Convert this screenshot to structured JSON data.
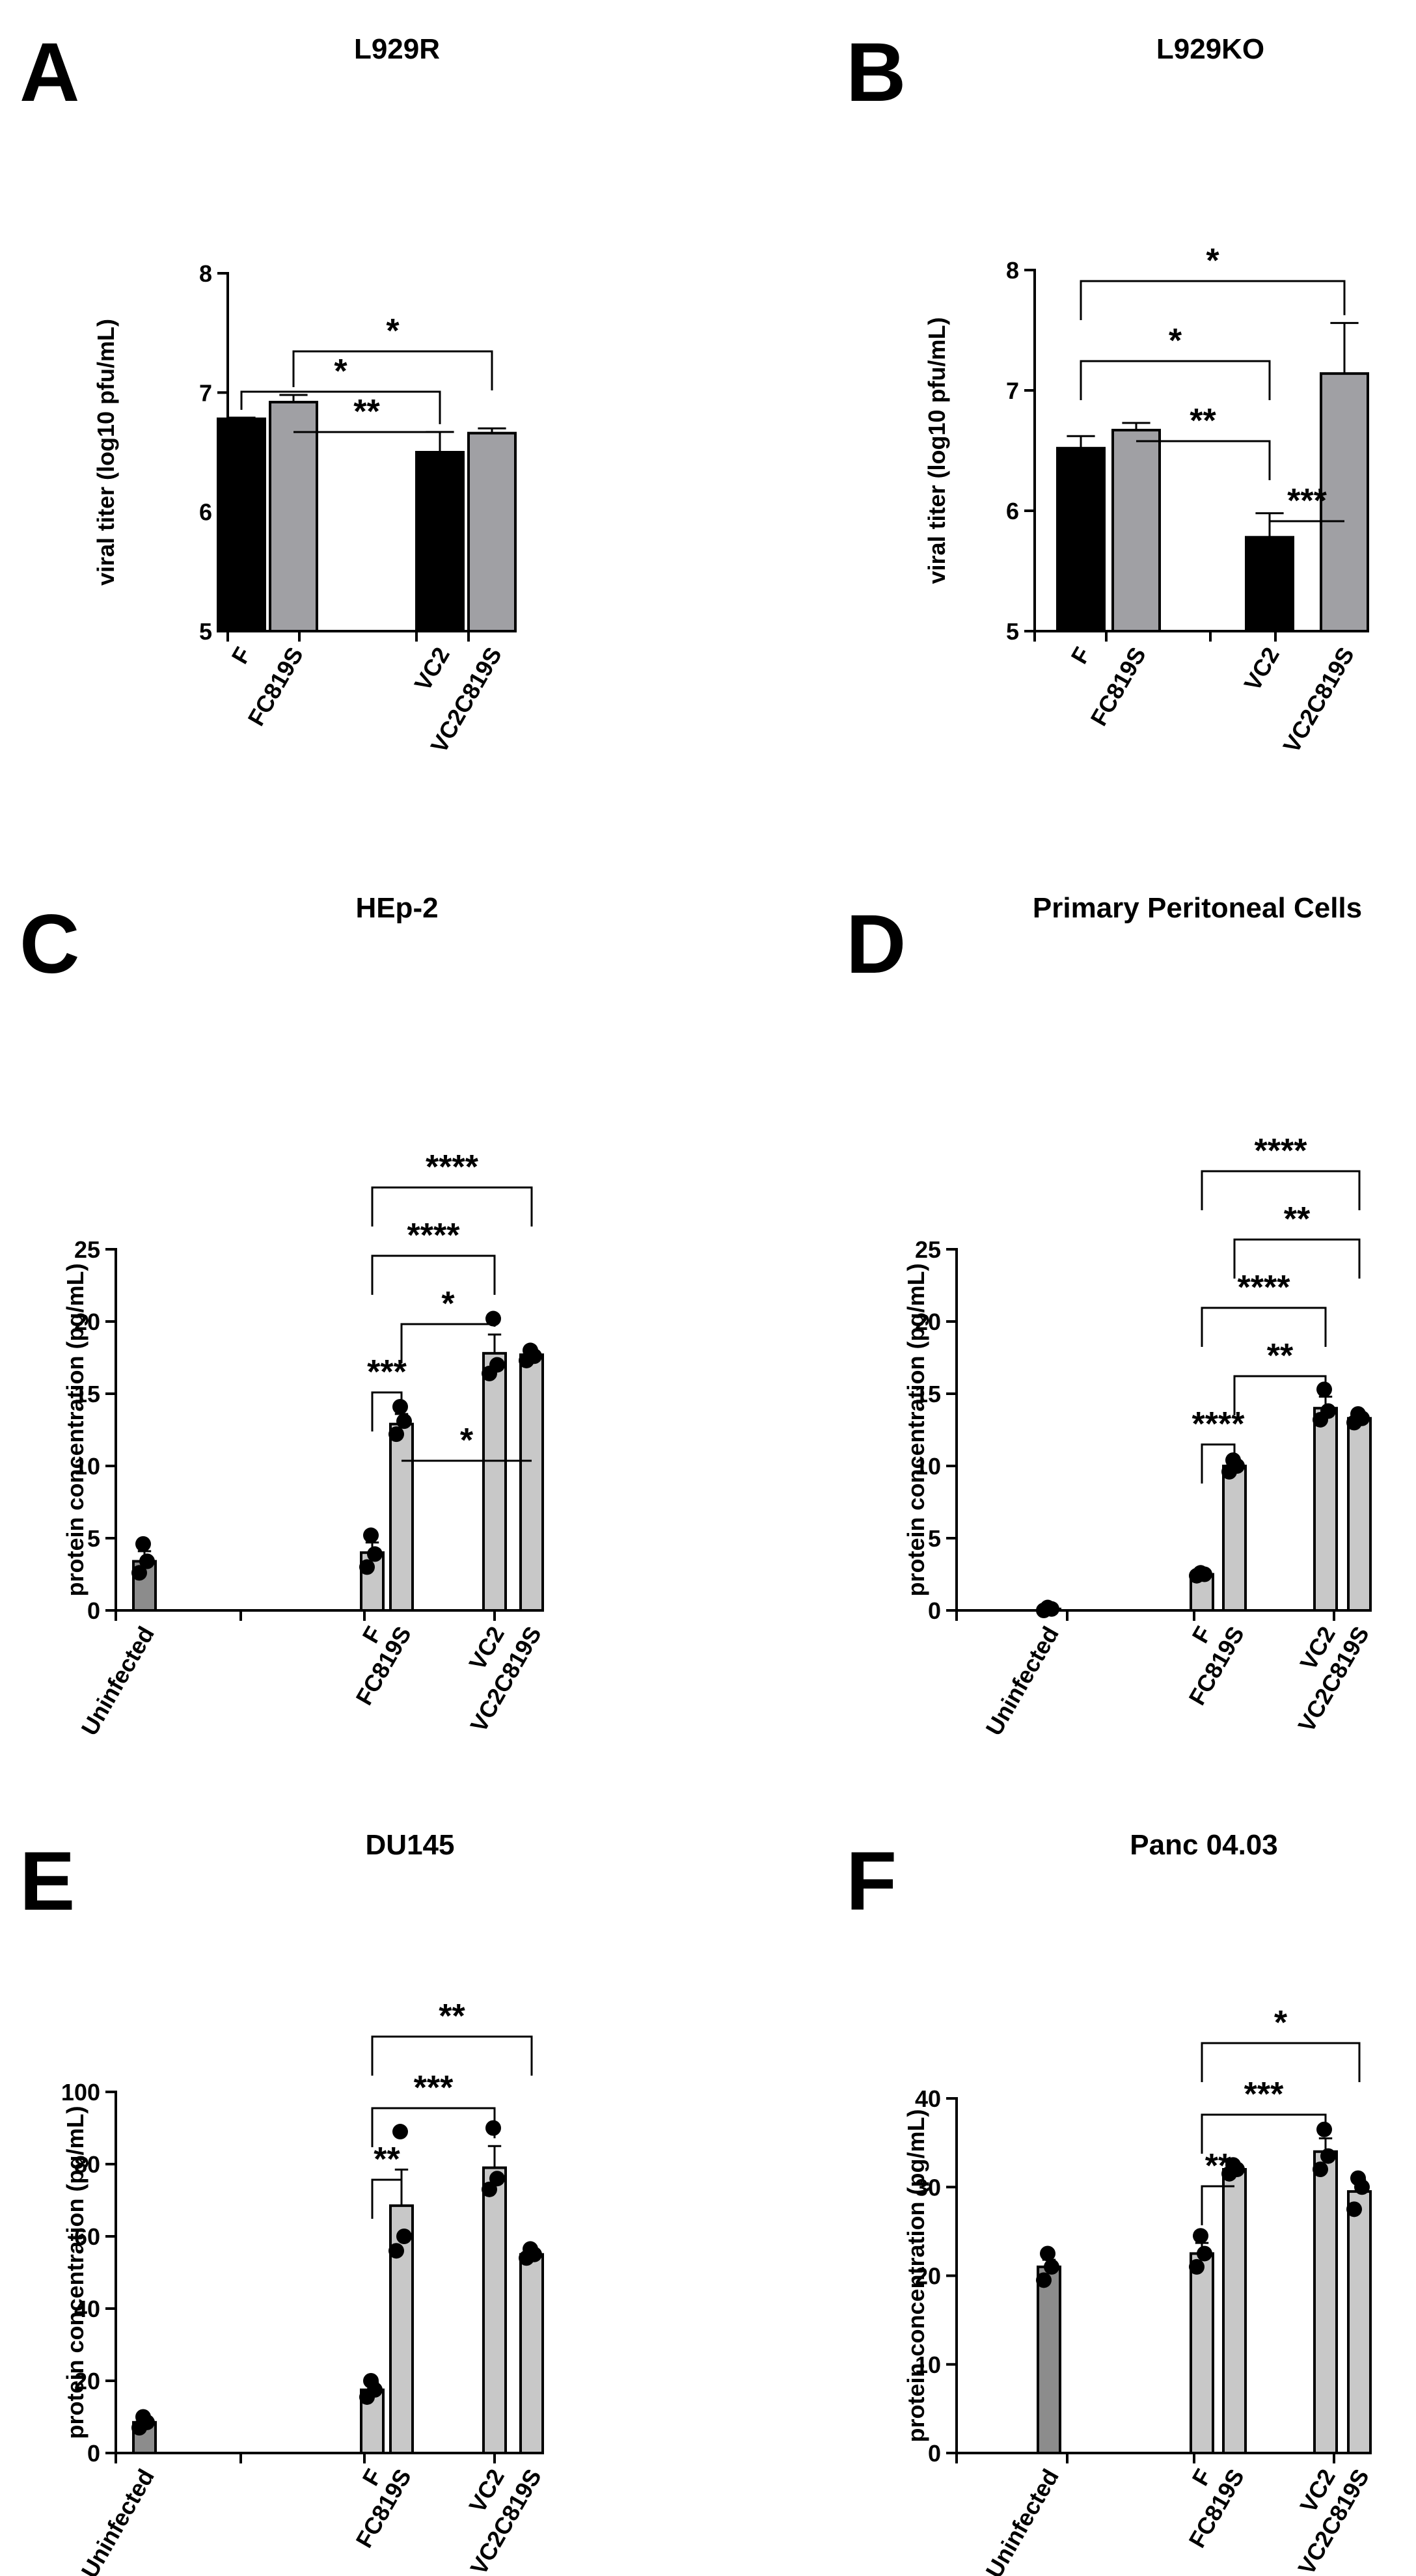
{
  "panels": [
    {
      "letter": "A",
      "title": "L929R",
      "ylabel": "viral titer (log10 pfu/mL)",
      "ylim": [
        5,
        8
      ],
      "yticks": [
        "5",
        "6",
        "7",
        "8"
      ],
      "categories": [
        "F",
        "FC819S",
        "VC2",
        "VC2C819S"
      ],
      "values": [
        6.78,
        6.92,
        6.5,
        6.66
      ],
      "errors": [
        0.01,
        0.06,
        0.17,
        0.04
      ],
      "colors": [
        "#000000",
        "#a0a0a4",
        "#000000",
        "#a0a0a4"
      ],
      "points": [
        [],
        [],
        [],
        []
      ],
      "sig": [
        {
          "from": 1,
          "to": 3,
          "stars": "*"
        },
        {
          "from": 0,
          "to": 2,
          "stars": "*"
        },
        {
          "from": 1,
          "to": 2,
          "stars": "**"
        }
      ]
    },
    {
      "letter": "B",
      "title": "L929KO",
      "ylabel": "viral titer (log10 pfu/mL)",
      "ylim": [
        5,
        8
      ],
      "yticks": [
        "5",
        "6",
        "7",
        "8"
      ],
      "categories": [
        "F",
        "FC819S",
        "VC2",
        "VC2C819S"
      ],
      "values": [
        6.52,
        6.67,
        5.78,
        7.14
      ],
      "errors": [
        0.1,
        0.06,
        0.2,
        0.42
      ],
      "colors": [
        "#000000",
        "#a0a0a4",
        "#000000",
        "#a0a0a4"
      ],
      "points": [
        [],
        [],
        [],
        []
      ],
      "sig": [
        {
          "from": 0,
          "to": 3,
          "stars": "*"
        },
        {
          "from": 0,
          "to": 2,
          "stars": "*"
        },
        {
          "from": 1,
          "to": 2,
          "stars": "**"
        },
        {
          "from": 2,
          "to": 3,
          "stars": "***"
        }
      ]
    },
    {
      "letter": "C",
      "title": "HEp-2",
      "ylabel": "protein concentration (pg/mL)",
      "ylim": [
        0,
        25
      ],
      "yticks": [
        "0",
        "5",
        "10",
        "15",
        "20",
        "25"
      ],
      "categories": [
        "Uninfected",
        "F",
        "FC819S",
        "VC2",
        "VC2C819S"
      ],
      "values": [
        3.4,
        4.0,
        12.9,
        17.8,
        17.7
      ],
      "errors": [
        0.7,
        0.7,
        0.7,
        1.3,
        0.3
      ],
      "colors": [
        "#8c8c8c",
        "#c8c8c8",
        "#c8c8c8",
        "#c8c8c8",
        "#c8c8c8"
      ],
      "points": [
        [
          2.6,
          3.4,
          4.6
        ],
        [
          3.0,
          3.9,
          5.2
        ],
        [
          12.2,
          13.1,
          14.1
        ],
        [
          16.4,
          17.0,
          20.2
        ],
        [
          17.3,
          17.6,
          18.0
        ]
      ],
      "sig": [
        {
          "from": 1,
          "to": 4,
          "stars": "****"
        },
        {
          "from": 1,
          "to": 3,
          "stars": "****"
        },
        {
          "from": 2,
          "to": 3,
          "stars": "*"
        },
        {
          "from": 1,
          "to": 2,
          "stars": "***"
        },
        {
          "from": 2,
          "to": 4,
          "stars": "*"
        }
      ]
    },
    {
      "letter": "D",
      "title": "Primary Peritoneal Cells",
      "ylabel": "protein concentration (pg/mL)",
      "ylim": [
        0,
        25
      ],
      "yticks": [
        "0",
        "5",
        "10",
        "15",
        "20",
        "25"
      ],
      "categories": [
        "Uninfected",
        "F",
        "FC819S",
        "VC2",
        "VC2C819S"
      ],
      "values": [
        0.1,
        2.5,
        10.0,
        14.0,
        13.3
      ],
      "errors": [
        0.05,
        0.1,
        0.3,
        0.8,
        0.2
      ],
      "colors": [
        "#8c8c8c",
        "#c8c8c8",
        "#c8c8c8",
        "#c8c8c8",
        "#c8c8c8"
      ],
      "points": [
        [
          0.0,
          0.1,
          0.2
        ],
        [
          2.4,
          2.5,
          2.6
        ],
        [
          9.6,
          10.0,
          10.4
        ],
        [
          13.2,
          13.8,
          15.3
        ],
        [
          13.0,
          13.3,
          13.6
        ]
      ],
      "sig": [
        {
          "from": 1,
          "to": 4,
          "stars": "****"
        },
        {
          "from": 2,
          "to": 4,
          "stars": "**"
        },
        {
          "from": 1,
          "to": 3,
          "stars": "****"
        },
        {
          "from": 2,
          "to": 3,
          "stars": "**"
        },
        {
          "from": 1,
          "to": 2,
          "stars": "****"
        }
      ]
    },
    {
      "letter": "E",
      "title": "DU145",
      "ylabel": "protein concentration (pg/mL)",
      "ylim": [
        0,
        100
      ],
      "yticks": [
        "0",
        "20",
        "40",
        "60",
        "80",
        "100"
      ],
      "categories": [
        "Uninfected",
        "F",
        "FC819S",
        "VC2",
        "VC2C819S"
      ],
      "values": [
        8.5,
        17.5,
        68.5,
        79.0,
        55.0
      ],
      "errors": [
        1.0,
        2.0,
        10.0,
        6.0,
        1.0
      ],
      "colors": [
        "#8c8c8c",
        "#c8c8c8",
        "#c8c8c8",
        "#c8c8c8",
        "#c8c8c8"
      ],
      "points": [
        [
          7.0,
          8.5,
          10.0
        ],
        [
          15.5,
          17.5,
          20.0
        ],
        [
          56.0,
          60.0,
          89.0
        ],
        [
          73.0,
          76.0,
          90.0
        ],
        [
          54.0,
          55.0,
          56.5
        ]
      ],
      "sig": [
        {
          "from": 1,
          "to": 4,
          "stars": "**"
        },
        {
          "from": 1,
          "to": 3,
          "stars": "***"
        },
        {
          "from": 1,
          "to": 2,
          "stars": "**"
        }
      ]
    },
    {
      "letter": "F",
      "title": "Panc 04.03",
      "ylabel": "protein concentration (pg/mL)",
      "ylim": [
        0,
        40
      ],
      "yticks": [
        "0",
        "10",
        "20",
        "30",
        "40"
      ],
      "categories": [
        "Uninfected",
        "F",
        "FC819S",
        "VC2",
        "VC2C819S"
      ],
      "values": [
        21.0,
        22.5,
        32.0,
        34.0,
        29.5
      ],
      "errors": [
        0.8,
        1.2,
        0.5,
        1.5,
        1.3
      ],
      "colors": [
        "#8c8c8c",
        "#c8c8c8",
        "#c8c8c8",
        "#c8c8c8",
        "#c8c8c8"
      ],
      "points": [
        [
          19.5,
          21.0,
          22.5
        ],
        [
          21.0,
          22.5,
          24.5
        ],
        [
          31.5,
          32.0,
          32.5
        ],
        [
          32.0,
          33.5,
          36.5
        ],
        [
          27.5,
          30.0,
          31.0
        ]
      ],
      "sig": [
        {
          "from": 1,
          "to": 4,
          "stars": "*"
        },
        {
          "from": 1,
          "to": 3,
          "stars": "***"
        },
        {
          "from": 1,
          "to": 2,
          "stars": "**"
        }
      ]
    }
  ]
}
